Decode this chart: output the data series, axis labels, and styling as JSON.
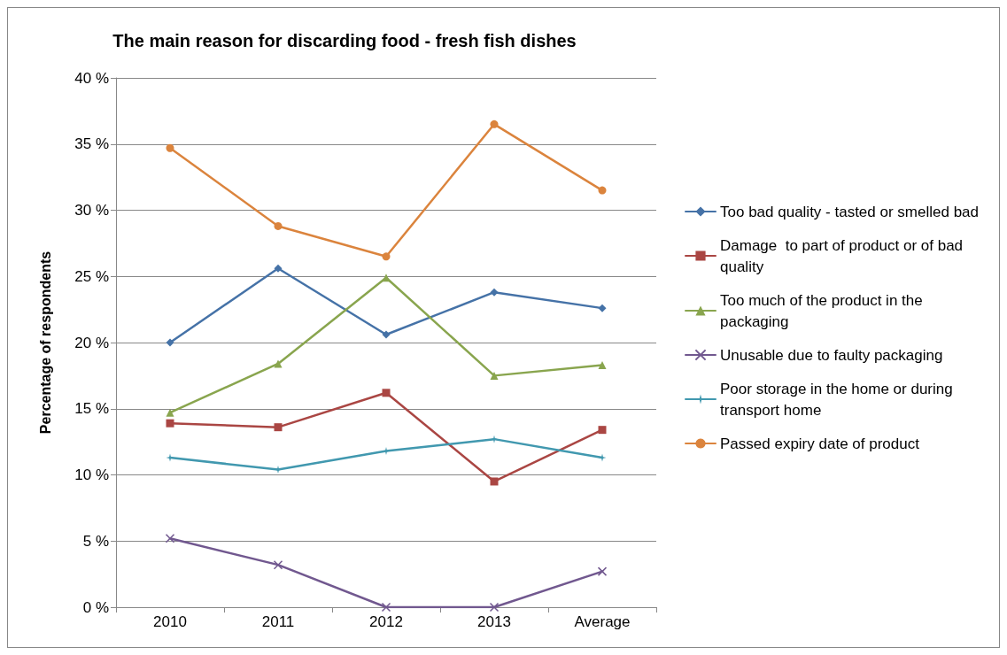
{
  "chart_data": {
    "type": "line",
    "title": "The main reason for discarding food - fresh fish dishes",
    "ylabel": "Percentage of respondents",
    "categories": [
      "2010",
      "2011",
      "2012",
      "2013",
      "Average"
    ],
    "series": [
      {
        "name": "Too bad quality - tasted or smelled bad",
        "color": "#4572a7",
        "marker": "diamond",
        "values": [
          20.0,
          25.6,
          20.6,
          23.8,
          22.6
        ]
      },
      {
        "name": "Damage  to part of product or of bad quality",
        "color": "#aa4643",
        "marker": "square",
        "values": [
          13.9,
          13.6,
          16.2,
          9.5,
          13.4
        ]
      },
      {
        "name": "Too much of the product in the packaging",
        "color": "#89a54e",
        "marker": "triangle",
        "values": [
          14.7,
          18.4,
          24.9,
          17.5,
          18.3
        ]
      },
      {
        "name": "Unusable due to faulty packaging",
        "color": "#71588f",
        "marker": "cross",
        "values": [
          5.2,
          3.2,
          0,
          0,
          2.7
        ]
      },
      {
        "name": "Poor storage in the home or during transport home",
        "color": "#4198af",
        "marker": "star",
        "values": [
          11.3,
          10.4,
          11.8,
          12.7,
          11.3
        ]
      },
      {
        "name": "Passed expiry date of product",
        "color": "#db843d",
        "marker": "circle",
        "values": [
          34.7,
          28.8,
          26.5,
          36.5,
          31.5
        ]
      }
    ],
    "ylim": [
      0,
      40
    ],
    "yticks": [
      {
        "value": 0,
        "label": "0 %"
      },
      {
        "value": 5,
        "label": "5 %"
      },
      {
        "value": 10,
        "label": "10 %"
      },
      {
        "value": 15,
        "label": "15 %"
      },
      {
        "value": 20,
        "label": "20 %"
      },
      {
        "value": 25,
        "label": "25 %"
      },
      {
        "value": 30,
        "label": "30 %"
      },
      {
        "value": 35,
        "label": "35 %"
      },
      {
        "value": 40,
        "label": "40 %"
      }
    ],
    "grid": "y",
    "legend": "right",
    "line_style": "solid"
  }
}
